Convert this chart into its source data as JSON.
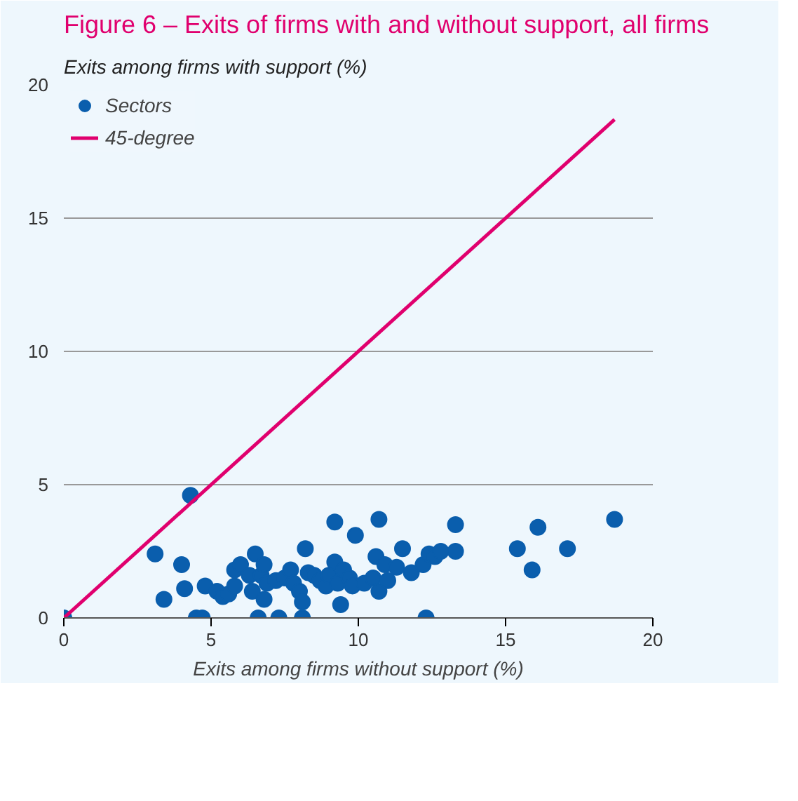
{
  "chart_data": {
    "type": "scatter",
    "title": "Figure 6 – Exits of firms with and without support, all firms",
    "xlabel": "Exits among firms without support (%)",
    "ylabel": "Exits among firms with support (%)",
    "xlim": [
      0,
      20
    ],
    "ylim": [
      0,
      20
    ],
    "xticks": [
      0,
      5,
      10,
      15,
      20
    ],
    "yticks": [
      0,
      5,
      10,
      15,
      20
    ],
    "grid": "y",
    "legend": "top left",
    "series": [
      {
        "name": "Sectors",
        "color": "#0a5ead",
        "marker": "circle",
        "x": [
          0,
          3.1,
          3.4,
          4.0,
          4.1,
          4.3,
          4.5,
          4.7,
          4.8,
          5.2,
          5.4,
          5.6,
          5.8,
          5.8,
          6.0,
          6.5,
          6.3,
          6.4,
          6.6,
          6.7,
          6.8,
          6.9,
          6.8,
          7.3,
          7.2,
          7.5,
          7.7,
          7.8,
          8.0,
          8.1,
          8.1,
          8.2,
          8.3,
          8.5,
          8.7,
          8.9,
          9.0,
          9.2,
          9.2,
          9.3,
          9.4,
          9.5,
          9.7,
          9.9,
          9.8,
          10.2,
          10.5,
          10.6,
          10.7,
          10.7,
          10.9,
          11.0,
          11.3,
          11.5,
          11.8,
          12.3,
          12.2,
          12.4,
          12.6,
          12.8,
          13.3,
          13.3,
          15.4,
          15.9,
          16.1,
          17.1,
          18.7
        ],
        "values": [
          0,
          2.4,
          0.7,
          2.0,
          1.1,
          4.6,
          0,
          0,
          1.2,
          1.0,
          0.8,
          0.9,
          1.2,
          1.8,
          2.0,
          2.4,
          1.6,
          1.0,
          0,
          1.6,
          2.0,
          1.3,
          0.7,
          0,
          1.4,
          1.5,
          1.8,
          1.3,
          1.0,
          0.6,
          0,
          2.6,
          1.7,
          1.6,
          1.4,
          1.2,
          1.6,
          3.6,
          2.1,
          1.3,
          0.5,
          1.8,
          1.5,
          3.1,
          1.2,
          1.3,
          1.5,
          2.3,
          3.7,
          1.0,
          2.0,
          1.4,
          1.9,
          2.6,
          1.7,
          0,
          2.0,
          2.4,
          2.3,
          2.5,
          3.5,
          2.5,
          2.6,
          1.8,
          3.4,
          2.6,
          3.7
        ]
      },
      {
        "name": "45-degree",
        "type": "line",
        "color": "#e0006e",
        "line_style": "solid",
        "x": [
          0,
          18.7
        ],
        "values": [
          0,
          18.7
        ]
      }
    ]
  }
}
